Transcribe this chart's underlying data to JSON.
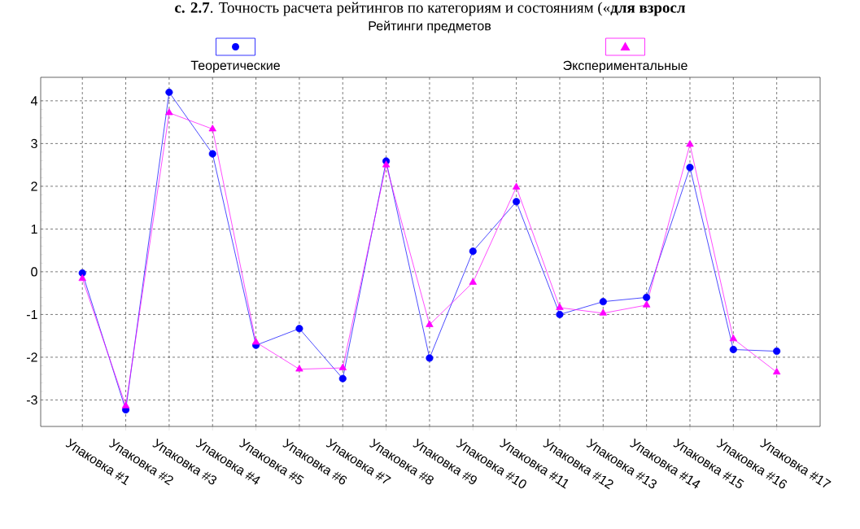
{
  "chart_data": {
    "type": "line",
    "title": "Рейтинги предметов",
    "annotations": [
      "**с. 2.7**. Точность расчета рейтингов по категориям и состояниям («**для взросл**"
    ],
    "categories": [
      "Упаковка #1",
      "Упаковка #2",
      "Упаковка #3",
      "Упаковка #4",
      "Упаковка #5",
      "Упаковка #6",
      "Упаковка #7",
      "Упаковка #8",
      "Упаковка #9",
      "Упаковка #10",
      "Упаковка #11",
      "Упаковка #12",
      "Упаковка #13",
      "Упаковка #14",
      "Упаковка #15",
      "Упаковка #16",
      "Упаковка #17"
    ],
    "series": [
      {
        "name": "Теоретические",
        "color": "#0000ff",
        "marker": "circle",
        "values": [
          -0.03,
          -3.23,
          4.2,
          2.76,
          -1.72,
          -1.33,
          -2.5,
          2.59,
          -2.02,
          0.48,
          1.64,
          -1.0,
          -0.7,
          -0.6,
          2.44,
          -1.82,
          -1.86
        ]
      },
      {
        "name": "Экспериментальные",
        "color": "#ff00ff",
        "marker": "triangle",
        "values": [
          -0.16,
          -3.14,
          3.72,
          3.34,
          -1.65,
          -2.28,
          -2.25,
          2.5,
          -1.24,
          -0.25,
          1.98,
          -0.84,
          -0.97,
          -0.78,
          2.98,
          -1.57,
          -2.35
        ]
      }
    ],
    "ylim": [
      -3.62,
      4.55
    ],
    "yticks": [
      -3,
      -2,
      -1,
      0,
      1,
      2,
      3,
      4
    ],
    "grid": true,
    "legend": "top",
    "line_style": "solid"
  }
}
